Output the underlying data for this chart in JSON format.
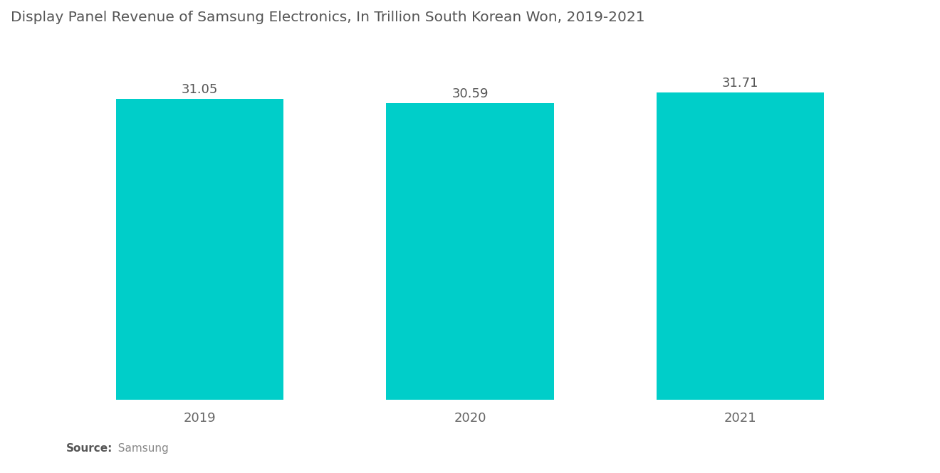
{
  "title": "Display Panel Revenue of Samsung Electronics, In Trillion South Korean Won, 2019-2021",
  "categories": [
    "2019",
    "2020",
    "2021"
  ],
  "values": [
    31.05,
    30.59,
    31.71
  ],
  "bar_color": "#00CEC9",
  "background_color": "#ffffff",
  "title_fontsize": 14.5,
  "label_fontsize": 13,
  "tick_fontsize": 13,
  "source_bold": "Source:",
  "source_normal": "  Samsung",
  "bar_width": 0.62,
  "ylim": [
    0,
    36
  ],
  "figsize": [
    13.2,
    6.65
  ],
  "dpi": 100
}
